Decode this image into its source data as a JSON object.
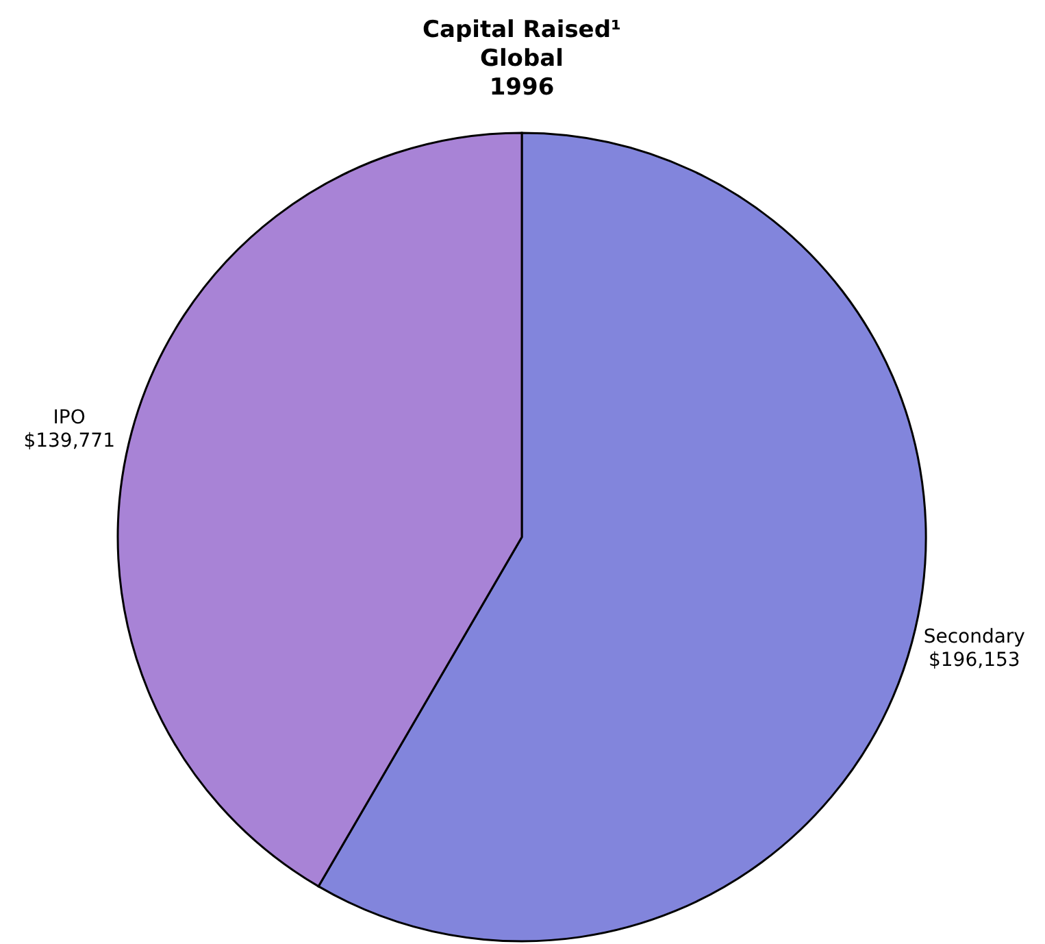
{
  "chart_data": {
    "type": "pie",
    "title": "Capital Raised¹\nGlobal\n1996",
    "categories": [
      "Secondary",
      "IPO"
    ],
    "values": [
      196153,
      139771
    ],
    "value_labels": [
      "$196,153",
      "$139,771"
    ],
    "colors": [
      "#8285dc",
      "#a883d6"
    ]
  }
}
